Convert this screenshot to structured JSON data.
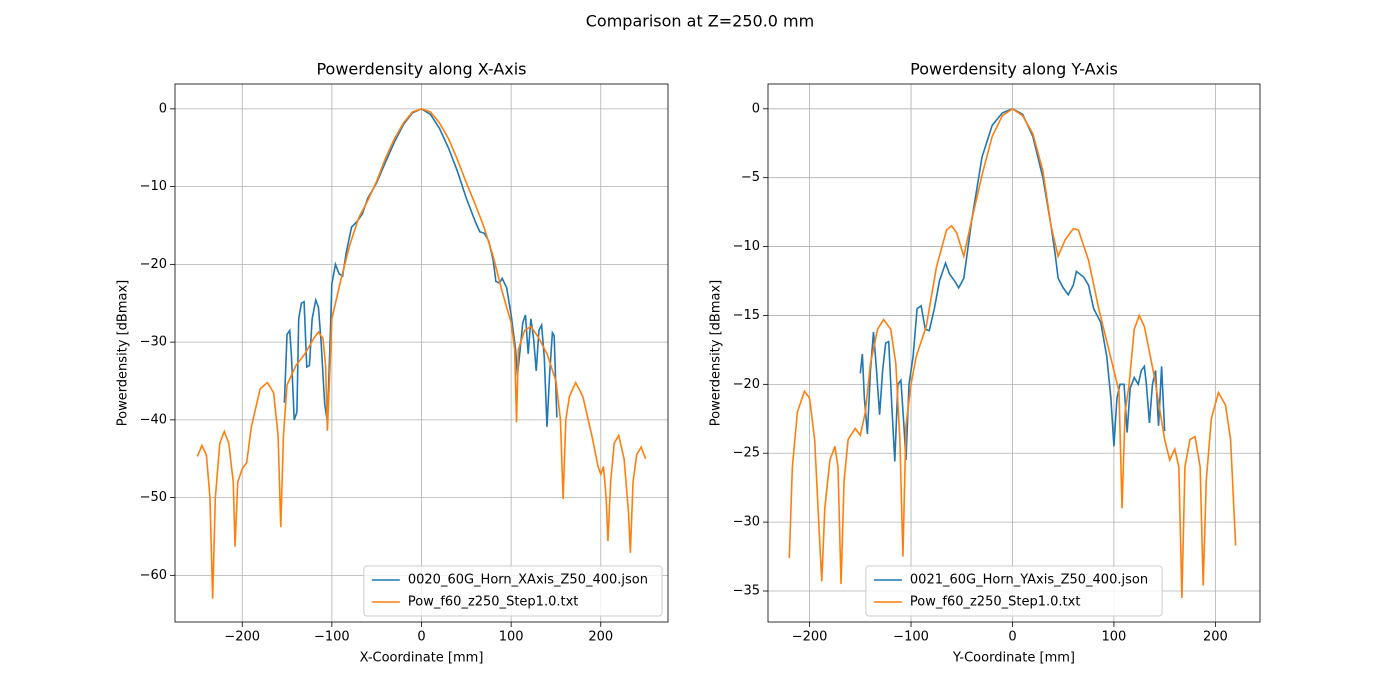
{
  "title": "Comparison at Z=250.0 mm",
  "chart_data": [
    {
      "type": "line",
      "title": "Powerdensity along X-Axis",
      "xlabel": "X-Coordinate [mm]",
      "ylabel": "Powerdensity [dBmax]",
      "xlim": [
        -275,
        275
      ],
      "ylim": [
        -66,
        3.2
      ],
      "xticks": [
        {
          "value": -200,
          "label": "−200"
        },
        {
          "value": -100,
          "label": "−100"
        },
        0,
        100,
        200
      ],
      "yticks": [
        0,
        {
          "value": -10,
          "label": "−10"
        },
        {
          "value": -20,
          "label": "−20"
        },
        {
          "value": -30,
          "label": "−30"
        },
        {
          "value": -40,
          "label": "−40"
        },
        {
          "value": -50,
          "label": "−50"
        },
        {
          "value": -60,
          "label": "−60"
        }
      ],
      "grid": true,
      "legend": "lower right",
      "series": [
        {
          "name": "0020_60G_Horn_XAxis_Z50_400.json",
          "color": "#1f77b4",
          "x": [
            -153,
            -150,
            -147,
            -145,
            -142,
            -139,
            -137,
            -134,
            -131,
            -128,
            -125,
            -122,
            -118,
            -115,
            -112,
            -108,
            -105,
            -102,
            -100,
            -96,
            -92,
            -88,
            -84,
            -78,
            -72,
            -66,
            -60,
            -50,
            -40,
            -30,
            -20,
            -10,
            0,
            10,
            20,
            30,
            40,
            50,
            60,
            65,
            70,
            75,
            80,
            83,
            87,
            90,
            95,
            100,
            105,
            107,
            110,
            113,
            116,
            119,
            122,
            125,
            128,
            131,
            134,
            137,
            140,
            143,
            146,
            148,
            151
          ],
          "values": [
            -37.8,
            -29,
            -28.5,
            -32,
            -40,
            -39,
            -27,
            -25,
            -24.8,
            -33.2,
            -33,
            -27,
            -24.6,
            -25.5,
            -30,
            -38,
            -40.2,
            -30,
            -22.5,
            -20,
            -21.2,
            -21.5,
            -18.5,
            -15.2,
            -14.5,
            -13.5,
            -11.5,
            -9.5,
            -6.8,
            -4.2,
            -2,
            -0.5,
            0,
            -0.7,
            -2.5,
            -5,
            -8,
            -11.5,
            -14.5,
            -15.8,
            -16,
            -17,
            -19.5,
            -22.2,
            -22.4,
            -21.8,
            -23,
            -26.5,
            -31,
            -34.3,
            -31,
            -27.5,
            -26.5,
            -31.5,
            -27,
            -29.5,
            -33.7,
            -28.5,
            -27.8,
            -32,
            -40.9,
            -34,
            -28.8,
            -29.2,
            -39.7
          ]
        },
        {
          "name": "Pow_f60_z250_Step1.0.txt",
          "color": "#ff7f0e",
          "x": [
            -250,
            -245,
            -240,
            -236,
            -233,
            -230,
            -225,
            -220,
            -215,
            -210,
            -208,
            -205,
            -200,
            -195,
            -190,
            -180,
            -172,
            -165,
            -160,
            -157,
            -154,
            -150,
            -140,
            -130,
            -120,
            -115,
            -110,
            -107,
            -105,
            -102,
            -100,
            -90,
            -80,
            -70,
            -60,
            -50,
            -40,
            -30,
            -20,
            -10,
            0,
            10,
            20,
            30,
            40,
            50,
            60,
            70,
            80,
            90,
            100,
            104,
            106,
            108,
            115,
            122,
            130,
            140,
            150,
            155,
            158,
            161,
            165,
            172,
            180,
            190,
            197,
            200,
            203,
            206,
            208,
            211,
            215,
            220,
            226,
            231,
            233,
            236,
            240,
            245,
            250
          ],
          "values": [
            -44.7,
            -43.3,
            -44.5,
            -50,
            -63,
            -50,
            -43,
            -41.5,
            -43,
            -48,
            -56.3,
            -48,
            -46.3,
            -45.5,
            -41,
            -36,
            -35.2,
            -36.5,
            -42,
            -53.8,
            -42,
            -35.5,
            -33,
            -31.5,
            -29.5,
            -28.7,
            -29.5,
            -33,
            -41.4,
            -33,
            -27,
            -22,
            -17.5,
            -14,
            -11.8,
            -9.3,
            -6.3,
            -3.8,
            -1.8,
            -0.4,
            0,
            -0.4,
            -1.8,
            -3.8,
            -6.5,
            -9.5,
            -12.3,
            -15.3,
            -19,
            -23.5,
            -27.5,
            -31,
            -40.3,
            -31,
            -28.5,
            -28,
            -29.3,
            -31.5,
            -35,
            -40,
            -50.2,
            -40,
            -37,
            -35.2,
            -37,
            -42,
            -46,
            -47,
            -46,
            -50,
            -55.6,
            -48,
            -43,
            -42,
            -45,
            -52,
            -57.1,
            -48,
            -44.5,
            -43.5,
            -45
          ]
        }
      ]
    },
    {
      "type": "line",
      "title": "Powerdensity along Y-Axis",
      "xlabel": "Y-Coordinate [mm]",
      "ylabel": "Powerdensity [dBmax]",
      "xlim": [
        -241,
        244
      ],
      "ylim": [
        -37.25,
        1.8
      ],
      "xticks": [
        {
          "value": -200,
          "label": "−200"
        },
        {
          "value": -100,
          "label": "−100"
        },
        0,
        100,
        200
      ],
      "yticks": [
        0,
        {
          "value": -5,
          "label": "−5"
        },
        {
          "value": -10,
          "label": "−10"
        },
        {
          "value": -15,
          "label": "−15"
        },
        {
          "value": -20,
          "label": "−20"
        },
        {
          "value": -25,
          "label": "−25"
        },
        {
          "value": -30,
          "label": "−30"
        },
        {
          "value": -35,
          "label": "−35"
        }
      ],
      "grid": true,
      "legend": "lower center",
      "series": [
        {
          "name": "0021_60G_Horn_YAxis_Z50_400.json",
          "color": "#1f77b4",
          "x": [
            -150,
            -148,
            -146,
            -143,
            -140,
            -137,
            -134,
            -131,
            -128,
            -125,
            -122,
            -119,
            -116,
            -113,
            -110,
            -107,
            -105,
            -102,
            -98,
            -94,
            -90,
            -86,
            -82,
            -77,
            -72,
            -66,
            -62,
            -57,
            -53,
            -48,
            -40,
            -30,
            -20,
            -10,
            0,
            10,
            20,
            30,
            38,
            42,
            45,
            50,
            55,
            60,
            63,
            70,
            75,
            80,
            87,
            93,
            97,
            100,
            103,
            106,
            110,
            113,
            116,
            120,
            124,
            127,
            130,
            132,
            135,
            138,
            141,
            144,
            147,
            150
          ],
          "values": [
            -19.2,
            -17.8,
            -21,
            -23.6,
            -19,
            -16.2,
            -19,
            -22.2,
            -19,
            -17,
            -16.9,
            -21.5,
            -25.6,
            -20,
            -19.7,
            -23,
            -25.5,
            -20,
            -18,
            -14.5,
            -14.3,
            -16,
            -16.1,
            -14.5,
            -12.5,
            -11.2,
            -12,
            -12.5,
            -13,
            -12.3,
            -8,
            -3.5,
            -1.2,
            -0.3,
            0,
            -0.4,
            -2,
            -5,
            -8.5,
            -10.5,
            -12.3,
            -13,
            -13.5,
            -12.8,
            -11.8,
            -12.2,
            -12.8,
            -14.5,
            -15.5,
            -18,
            -21,
            -24.5,
            -21,
            -20,
            -20,
            -23.5,
            -20.3,
            -19.5,
            -20,
            -19,
            -18.7,
            -20,
            -22.8,
            -20,
            -19,
            -23,
            -18.7,
            -23.4
          ]
        },
        {
          "name": "Pow_f60_z250_Step1.0.txt",
          "color": "#ff7f0e",
          "x": [
            -220,
            -217,
            -212,
            -205,
            -200,
            -195,
            -191,
            -188,
            -185,
            -180,
            -175,
            -172,
            -169,
            -166,
            -162,
            -155,
            -150,
            -145,
            -140,
            -133,
            -127,
            -120,
            -115,
            -111,
            -108,
            -105,
            -100,
            -95,
            -85,
            -75,
            -65,
            -60,
            -55,
            -48,
            -40,
            -30,
            -20,
            -10,
            0,
            10,
            20,
            30,
            38,
            45,
            52,
            60,
            65,
            75,
            85,
            95,
            105,
            108,
            111,
            115,
            120,
            125,
            130,
            140,
            150,
            155,
            160,
            164,
            167,
            170,
            175,
            180,
            185,
            188,
            191,
            196,
            203,
            210,
            215,
            220
          ],
          "values": [
            -32.6,
            -26,
            -22,
            -20.5,
            -21,
            -24,
            -30,
            -34.3,
            -29,
            -25.5,
            -24.5,
            -26,
            -34.5,
            -27,
            -24,
            -23.2,
            -23.7,
            -22,
            -18.5,
            -16,
            -15.3,
            -16,
            -18.5,
            -24,
            -32.5,
            -23,
            -20,
            -18,
            -15.8,
            -11.5,
            -8.8,
            -8.5,
            -9,
            -10.7,
            -8,
            -4.8,
            -2,
            -0.5,
            0,
            -0.5,
            -1.8,
            -4.5,
            -8.5,
            -10.7,
            -9.5,
            -8.7,
            -8.8,
            -11,
            -14.5,
            -17.5,
            -20.5,
            -29,
            -22,
            -20,
            -16,
            -15,
            -15.8,
            -19.5,
            -24,
            -25.5,
            -24.7,
            -26,
            -35.5,
            -26,
            -24,
            -23.8,
            -26,
            -34.6,
            -27,
            -22.5,
            -20.6,
            -21.5,
            -24,
            -31.7
          ]
        }
      ]
    }
  ]
}
